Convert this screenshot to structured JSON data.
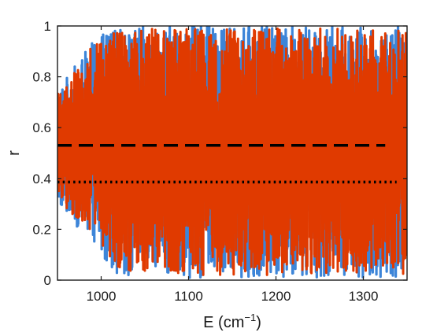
{
  "chart_data": {
    "type": "line",
    "title": "",
    "xlabel": "E (cm",
    "xlabel_superscript": "−1",
    "xlabel_close": ")",
    "ylabel": "r",
    "xlim": [
      950,
      1350
    ],
    "ylim": [
      0,
      1
    ],
    "xticks": [
      1000,
      1100,
      1200,
      1300
    ],
    "xtick_labels": [
      "1000",
      "1100",
      "1200",
      "1300"
    ],
    "yticks": [
      0,
      0.2,
      0.4,
      0.6,
      0.8,
      1
    ],
    "ytick_labels": [
      "0",
      "0.2",
      "0.4",
      "0.6",
      "0.8",
      "1"
    ],
    "grid": false,
    "legend": false,
    "series": [
      {
        "style": "solid",
        "color": "#3d85d8",
        "x_range": [
          950,
          1350
        ],
        "y_envelope": {
          "x": [
            950,
            1000,
            1020,
            1050,
            1350
          ],
          "min": [
            0.3,
            0.1,
            0.02,
            0.01,
            0.01
          ],
          "max": [
            0.75,
            0.98,
            0.99,
            1.0,
            1.0
          ]
        }
      },
      {
        "style": "solid",
        "color": "#e03a00",
        "x_range": [
          950,
          1350
        ],
        "y_envelope": {
          "x": [
            950,
            1000,
            1020,
            1050,
            1350
          ],
          "min": [
            0.32,
            0.14,
            0.04,
            0.02,
            0.02
          ],
          "max": [
            0.74,
            0.97,
            0.98,
            0.99,
            0.99
          ]
        }
      }
    ],
    "reference_lines": [
      {
        "style": "dashed",
        "y": 0.53,
        "x_from": 950,
        "x_to": 1325,
        "color": "#000000"
      },
      {
        "style": "dotted",
        "y": 0.386,
        "x_from": 950,
        "x_to": 1338,
        "color": "#000000"
      }
    ]
  }
}
